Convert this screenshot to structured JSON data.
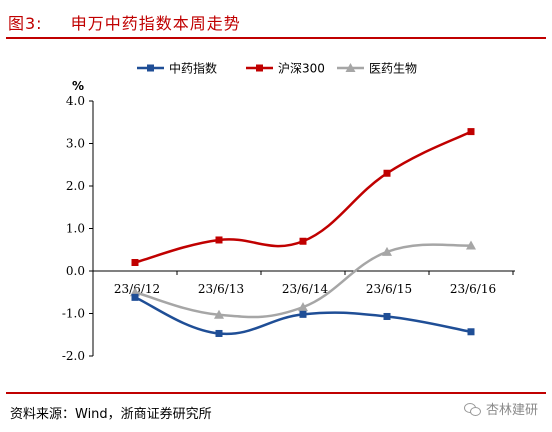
{
  "figure_label": "图3:",
  "figure_title": "申万中药指数本周走势",
  "source": "资料来源：Wind，浙商证券研究所",
  "watermark": "杏林建研",
  "colors": {
    "accent": "#c00000",
    "series_zhongyao": "#1f4e96",
    "series_hs300": "#c00000",
    "series_yiyao": "#a6a6a6"
  },
  "chart_data": {
    "type": "line",
    "title": "",
    "ylabel": "%",
    "xlabel": "",
    "categories": [
      "23/6/12",
      "23/6/13",
      "23/6/14",
      "23/6/15",
      "23/6/16"
    ],
    "ylim": [
      -2.0,
      4.0
    ],
    "yticks": [
      "4.0",
      "3.0",
      "2.0",
      "1.0",
      "0.0",
      "-1.0",
      "-2.0"
    ],
    "legend_position": "top",
    "grid": false,
    "series": [
      {
        "name": "中药指数",
        "marker": "square",
        "color": "#1f4e96",
        "values": [
          -0.62,
          -1.47,
          -1.02,
          -1.07,
          -1.43
        ]
      },
      {
        "name": "沪深300",
        "marker": "square",
        "color": "#c00000",
        "values": [
          0.2,
          0.73,
          0.7,
          2.3,
          3.28
        ]
      },
      {
        "name": "医药生物",
        "marker": "triangle",
        "color": "#a6a6a6",
        "values": [
          -0.5,
          -1.03,
          -0.85,
          0.45,
          0.6
        ]
      }
    ]
  }
}
